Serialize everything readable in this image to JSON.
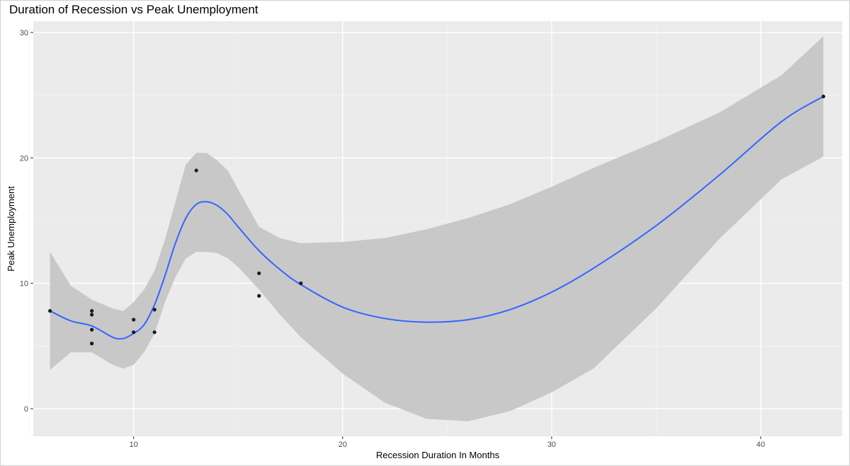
{
  "chart_data": {
    "type": "scatter",
    "title": "Duration of Recession vs Peak Unemployment",
    "xlabel": "Recession Duration In Months",
    "ylabel": "Peak Unemployment",
    "xlim": [
      5.2,
      43.9
    ],
    "ylim": [
      -2.2,
      30.9
    ],
    "x_ticks": [
      10,
      20,
      30,
      40
    ],
    "y_ticks": [
      0,
      10,
      20,
      30
    ],
    "x_minor_ticks": [
      5,
      15,
      25,
      35
    ],
    "y_minor_ticks": [
      5,
      15,
      25
    ],
    "grid": true,
    "points": [
      {
        "x": 6,
        "y": 7.8
      },
      {
        "x": 8,
        "y": 7.8
      },
      {
        "x": 8,
        "y": 7.5
      },
      {
        "x": 8,
        "y": 6.3
      },
      {
        "x": 8,
        "y": 5.2
      },
      {
        "x": 10,
        "y": 7.1
      },
      {
        "x": 10,
        "y": 6.1
      },
      {
        "x": 11,
        "y": 7.9
      },
      {
        "x": 11,
        "y": 6.1
      },
      {
        "x": 13,
        "y": 19.0
      },
      {
        "x": 16,
        "y": 10.8
      },
      {
        "x": 16,
        "y": 9.0
      },
      {
        "x": 18,
        "y": 10.0
      },
      {
        "x": 43,
        "y": 24.9
      }
    ],
    "smooth": {
      "method": "loess",
      "line_color": "#3366FF",
      "band_color": "#C8C8C8",
      "x": [
        6,
        7,
        8,
        9,
        9.5,
        10,
        10.5,
        11,
        11.5,
        12,
        12.5,
        13,
        13.5,
        14,
        14.5,
        15,
        16,
        17,
        18,
        20,
        22,
        24,
        26,
        28,
        30,
        32,
        35,
        38,
        41,
        43
      ],
      "y": [
        7.8,
        7.0,
        6.6,
        5.7,
        5.6,
        6.0,
        6.7,
        8.3,
        10.6,
        13.2,
        15.2,
        16.3,
        16.5,
        16.2,
        15.5,
        14.5,
        12.6,
        11.1,
        9.9,
        8.1,
        7.2,
        6.9,
        7.1,
        7.9,
        9.3,
        11.2,
        14.6,
        18.6,
        22.9,
        24.9
      ],
      "lower": [
        3.1,
        4.5,
        4.5,
        3.5,
        3.2,
        3.5,
        4.5,
        6.0,
        8.5,
        10.5,
        12.0,
        12.5,
        12.5,
        12.4,
        12.0,
        11.3,
        9.5,
        7.5,
        5.7,
        2.8,
        0.5,
        -0.8,
        -1.0,
        -0.2,
        1.3,
        3.2,
        8.0,
        13.5,
        18.3,
        20.1
      ],
      "upper": [
        12.5,
        9.8,
        8.7,
        8.0,
        7.8,
        8.5,
        9.5,
        11.0,
        13.5,
        16.5,
        19.5,
        20.4,
        20.4,
        19.8,
        19.0,
        17.5,
        14.5,
        13.6,
        13.2,
        13.3,
        13.6,
        14.3,
        15.2,
        16.3,
        17.7,
        19.2,
        21.3,
        23.6,
        26.6,
        29.7
      ]
    },
    "colors": {
      "panel_background": "#EBEBEB",
      "grid_major": "#FFFFFF",
      "grid_minor": "#F4F4F4",
      "point": "#1A1A1A",
      "tick_label": "#4D4D4D"
    }
  }
}
